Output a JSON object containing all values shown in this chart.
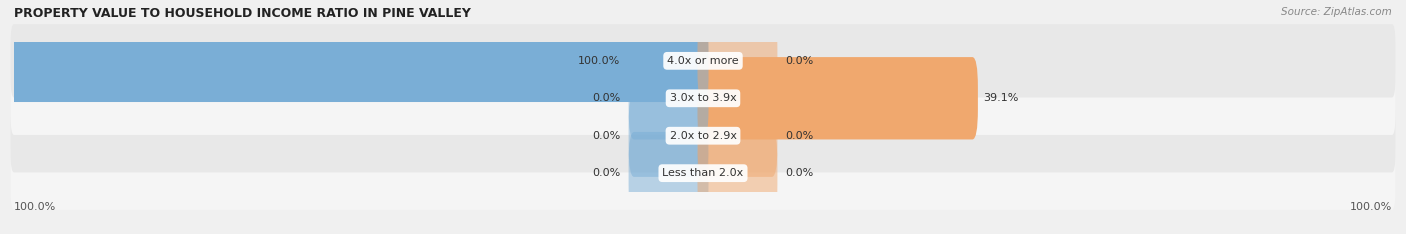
{
  "title": "PROPERTY VALUE TO HOUSEHOLD INCOME RATIO IN PINE VALLEY",
  "source": "Source: ZipAtlas.com",
  "categories": [
    "Less than 2.0x",
    "2.0x to 2.9x",
    "3.0x to 3.9x",
    "4.0x or more"
  ],
  "without_mortgage": [
    0.0,
    0.0,
    0.0,
    100.0
  ],
  "with_mortgage": [
    0.0,
    0.0,
    39.1,
    0.0
  ],
  "color_without": "#7aaed6",
  "color_with": "#f0a86e",
  "row_bg_even": "#f5f5f5",
  "row_bg_odd": "#e8e8e8",
  "text_color": "#333333",
  "title_color": "#222222",
  "source_color": "#888888",
  "axis_label_left": "100.0%",
  "axis_label_right": "100.0%",
  "small_bar_width": 10.0,
  "xlim": 100.0
}
